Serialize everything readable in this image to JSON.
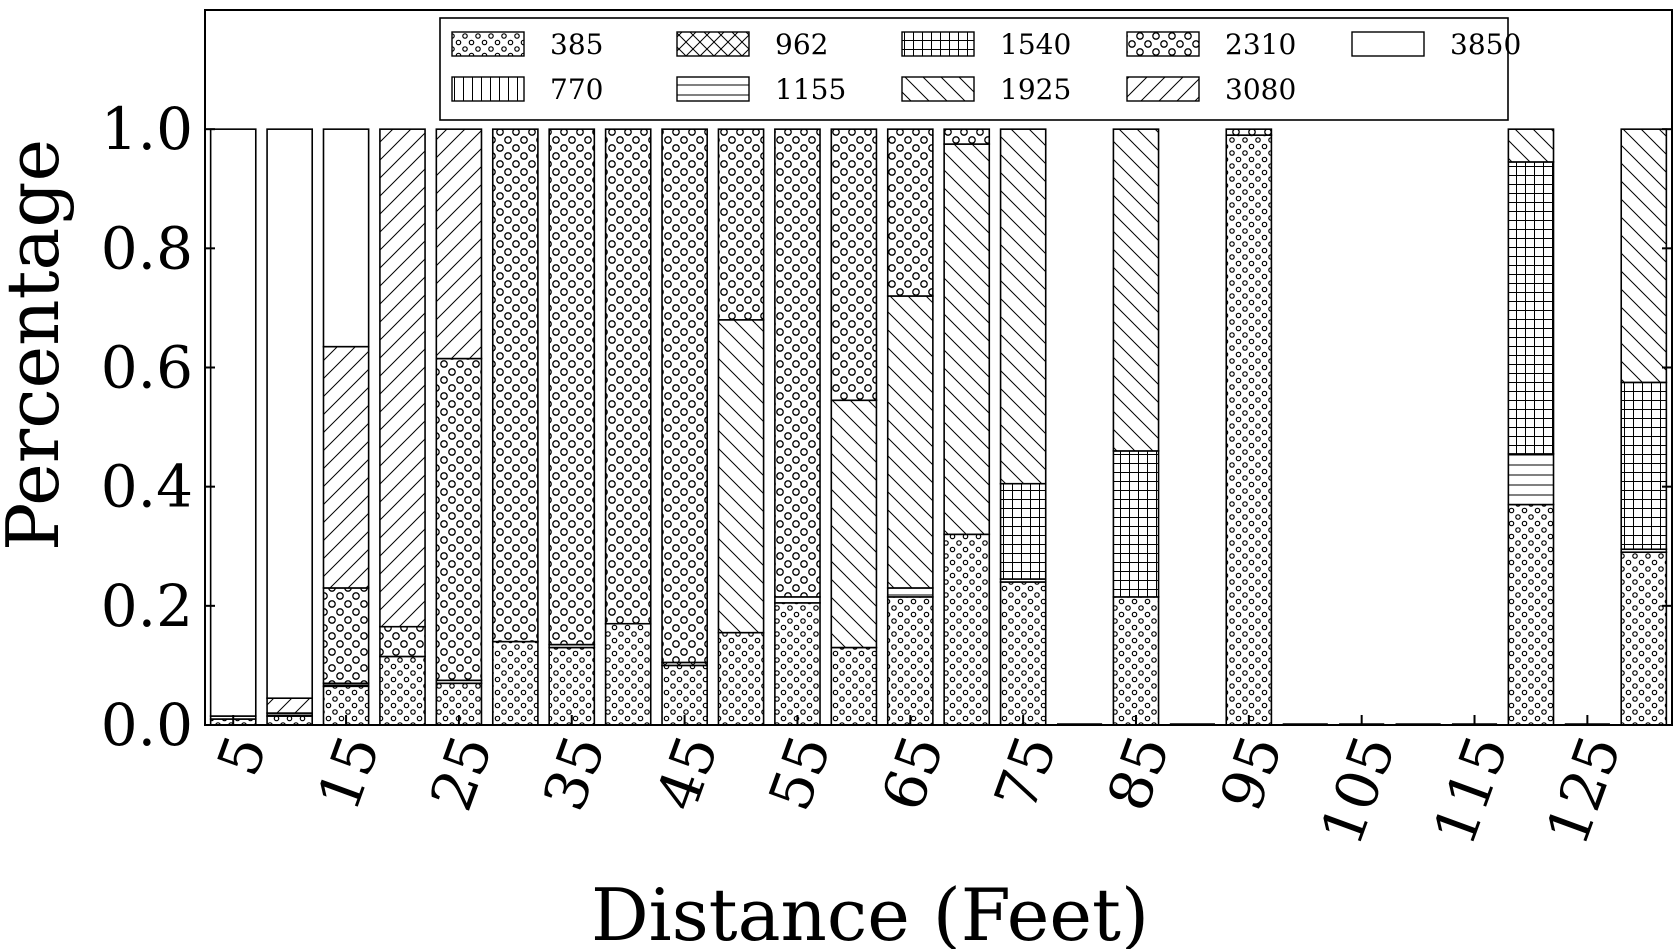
{
  "chart_data": {
    "type": "bar",
    "stacked": true,
    "title": "",
    "xlabel": "Distance (Feet)",
    "ylabel": "Percentage",
    "ylim": [
      0,
      1.2
    ],
    "yticks": [
      0.0,
      0.2,
      0.4,
      0.6,
      0.8,
      1.0
    ],
    "ytick_labels": [
      "0.0",
      "0.2",
      "0.4",
      "0.6",
      "0.8",
      "1.0"
    ],
    "xtick_labels": [
      "5",
      "15",
      "25",
      "35",
      "45",
      "55",
      "65",
      "75",
      "85",
      "95",
      "105",
      "115",
      "125"
    ],
    "categories": [
      5,
      10,
      15,
      20,
      25,
      30,
      35,
      40,
      45,
      50,
      55,
      60,
      65,
      70,
      75,
      80,
      85,
      90,
      95,
      100,
      105,
      110,
      115,
      120,
      125,
      130
    ],
    "legend_position": "top-center",
    "grid": false,
    "series": [
      {
        "name": "385",
        "pattern": "dots",
        "values": [
          0.01,
          0.015,
          0.065,
          0.115,
          0.07,
          0.14,
          0.13,
          0.17,
          0.1,
          0.155,
          0.205,
          0.13,
          0.215,
          0.32,
          0.24,
          0,
          0.215,
          0,
          0.99,
          0,
          0,
          0,
          0,
          0.37,
          0,
          0.29
        ]
      },
      {
        "name": "770",
        "pattern": "vertical",
        "values": [
          0,
          0,
          0,
          0,
          0,
          0,
          0,
          0,
          0,
          0,
          0,
          0,
          0,
          0,
          0,
          0,
          0,
          0,
          0,
          0,
          0,
          0,
          0,
          0,
          0,
          0
        ]
      },
      {
        "name": "962",
        "pattern": "crosshatch",
        "values": [
          0,
          0,
          0,
          0,
          0,
          0,
          0,
          0,
          0.005,
          0,
          0,
          0,
          0,
          0,
          0,
          0,
          0,
          0,
          0,
          0,
          0,
          0,
          0,
          0,
          0,
          0
        ]
      },
      {
        "name": "1155",
        "pattern": "horizontal",
        "values": [
          0.005,
          0.005,
          0.005,
          0,
          0.005,
          0,
          0.005,
          0,
          0,
          0,
          0.01,
          0,
          0.015,
          0,
          0.005,
          0,
          0,
          0,
          0,
          0,
          0,
          0,
          0,
          0.085,
          0,
          0.005
        ]
      },
      {
        "name": "1540",
        "pattern": "grid",
        "values": [
          0,
          0,
          0,
          0,
          0,
          0,
          0,
          0,
          0,
          0,
          0,
          0,
          0,
          0,
          0.16,
          0,
          0.245,
          0,
          0,
          0,
          0,
          0,
          0,
          0.49,
          0,
          0.28
        ]
      },
      {
        "name": "1925",
        "pattern": "backslash",
        "values": [
          0,
          0,
          0,
          0,
          0,
          0,
          0,
          0,
          0,
          0.525,
          0,
          0.415,
          0.49,
          0.655,
          0.595,
          0,
          0.54,
          0,
          0,
          0,
          0,
          0,
          0,
          0.055,
          0,
          0.425
        ]
      },
      {
        "name": "2310",
        "pattern": "circles",
        "values": [
          0,
          0,
          0.16,
          0.05,
          0.54,
          0.86,
          0.865,
          0.83,
          0.895,
          0.32,
          0.785,
          0.455,
          0.28,
          0.025,
          0,
          0,
          0,
          0,
          0.01,
          0,
          0,
          0,
          0,
          0,
          0,
          0
        ]
      },
      {
        "name": "3080",
        "pattern": "slash",
        "values": [
          0,
          0.025,
          0.405,
          0.835,
          0.385,
          0,
          0,
          0,
          0,
          0,
          0,
          0,
          0,
          0,
          0,
          0,
          0,
          0,
          0,
          0,
          0,
          0,
          0,
          0,
          0,
          0
        ]
      },
      {
        "name": "3850",
        "pattern": "empty",
        "values": [
          0.985,
          0.955,
          0.365,
          0,
          0,
          0,
          0,
          0,
          0,
          0,
          0,
          0,
          0,
          0,
          0,
          0,
          0,
          0,
          0,
          0,
          0,
          0,
          0,
          0,
          0,
          0
        ]
      }
    ]
  }
}
